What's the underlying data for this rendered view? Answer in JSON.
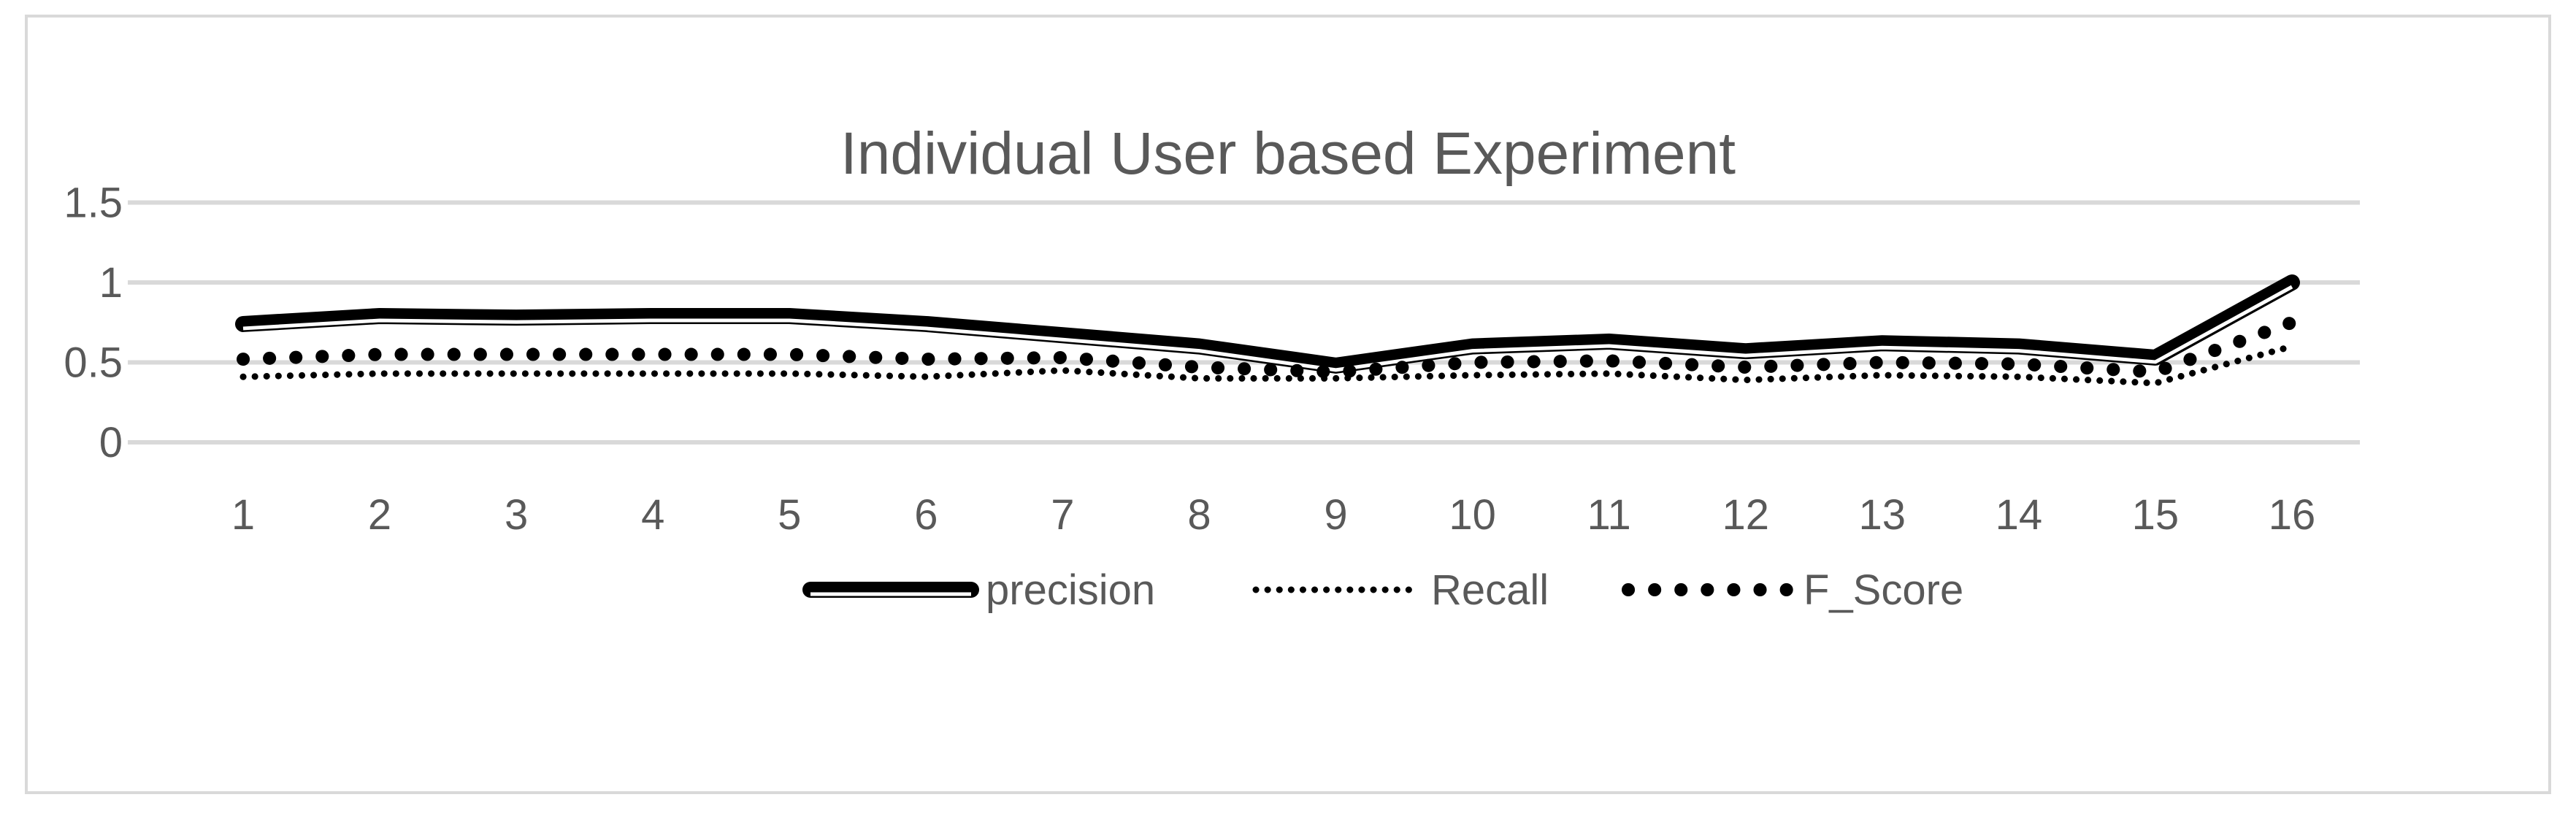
{
  "chart_data": {
    "type": "line",
    "title": "Individual User based Experiment",
    "categories": [
      "1",
      "2",
      "3",
      "4",
      "5",
      "6",
      "7",
      "8",
      "9",
      "10",
      "11",
      "12",
      "13",
      "14",
      "15",
      "16"
    ],
    "series": [
      {
        "name": "precision",
        "style": "double-solid",
        "values": [
          0.74,
          0.79,
          0.78,
          0.79,
          0.79,
          0.74,
          0.67,
          0.6,
          0.48,
          0.6,
          0.63,
          0.57,
          0.62,
          0.6,
          0.53,
          1.0
        ]
      },
      {
        "name": "Recall",
        "style": "fine-dotted",
        "values": [
          0.41,
          0.43,
          0.43,
          0.43,
          0.43,
          0.41,
          0.45,
          0.4,
          0.4,
          0.42,
          0.43,
          0.39,
          0.42,
          0.41,
          0.37,
          0.6
        ]
      },
      {
        "name": "F_Score",
        "style": "round-dotted",
        "values": [
          0.52,
          0.55,
          0.55,
          0.55,
          0.55,
          0.52,
          0.53,
          0.47,
          0.44,
          0.5,
          0.51,
          0.47,
          0.5,
          0.49,
          0.44,
          0.75
        ]
      }
    ],
    "yticks": [
      "0",
      "0.5",
      "1",
      "1.5"
    ],
    "ylim": [
      0,
      1.5
    ],
    "xlabel": "",
    "ylabel": "",
    "grid": true,
    "legend": "bottom",
    "colors": {
      "text": "#595959",
      "grid": "#d9d9d9",
      "lines": "#000000"
    }
  }
}
